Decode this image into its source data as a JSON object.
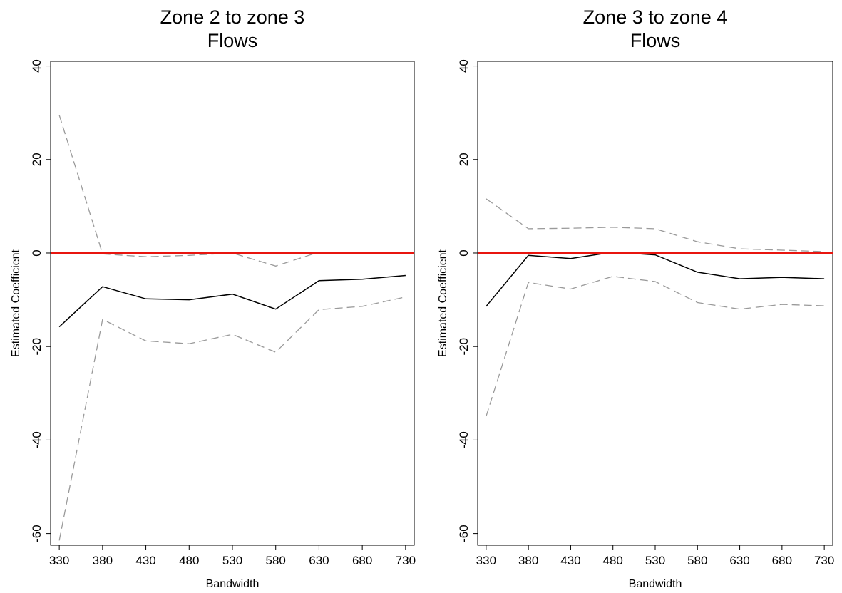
{
  "chart_data": [
    {
      "type": "line",
      "title": [
        "Zone 2 to zone 3",
        "Flows"
      ],
      "xlabel": "Bandwidth",
      "ylabel": "Estimated Coefficient",
      "x": [
        330,
        380,
        430,
        480,
        530,
        580,
        630,
        680,
        730
      ],
      "xticks": [
        "330",
        "380",
        "430",
        "480",
        "530",
        "580",
        "630",
        "680",
        "730"
      ],
      "yticks": [
        -60,
        -40,
        -20,
        0,
        20,
        40
      ],
      "xlim": [
        320,
        740
      ],
      "ylim": [
        -62.5,
        41
      ],
      "grid": false,
      "reference_line": {
        "y": 0,
        "color": "#e8150f"
      },
      "series": [
        {
          "role": "upper",
          "style": "dashed",
          "color": "#9a9a9a",
          "values": [
            29.5,
            -0.2,
            -0.8,
            -0.5,
            0.0,
            -2.8,
            0.2,
            0.2,
            -0.1
          ]
        },
        {
          "role": "estimate",
          "style": "solid",
          "color": "#000000",
          "values": [
            -15.8,
            -7.2,
            -9.8,
            -10.0,
            -8.8,
            -12.0,
            -5.9,
            -5.6,
            -4.8
          ]
        },
        {
          "role": "lower",
          "style": "dashed",
          "color": "#9a9a9a",
          "values": [
            -61.5,
            -14.2,
            -18.8,
            -19.4,
            -17.4,
            -21.2,
            -12.1,
            -11.4,
            -9.4
          ]
        }
      ]
    },
    {
      "type": "line",
      "title": [
        "Zone 3 to zone 4",
        "Flows"
      ],
      "xlabel": "Bandwidth",
      "ylabel": "Estimated Coefficient",
      "x": [
        330,
        380,
        430,
        480,
        530,
        580,
        630,
        680,
        730
      ],
      "xticks": [
        "330",
        "380",
        "430",
        "480",
        "530",
        "580",
        "630",
        "680",
        "730"
      ],
      "yticks": [
        -60,
        -40,
        -20,
        0,
        20,
        40
      ],
      "xlim": [
        320,
        740
      ],
      "ylim": [
        -62.5,
        41
      ],
      "grid": false,
      "reference_line": {
        "y": 0,
        "color": "#e8150f"
      },
      "series": [
        {
          "role": "upper",
          "style": "dashed",
          "color": "#9a9a9a",
          "values": [
            11.6,
            5.2,
            5.3,
            5.5,
            5.2,
            2.4,
            0.9,
            0.6,
            0.3
          ]
        },
        {
          "role": "estimate",
          "style": "solid",
          "color": "#000000",
          "values": [
            -11.4,
            -0.5,
            -1.2,
            0.2,
            -0.4,
            -4.1,
            -5.5,
            -5.2,
            -5.5
          ]
        },
        {
          "role": "lower",
          "style": "dashed",
          "color": "#9a9a9a",
          "values": [
            -34.9,
            -6.3,
            -7.7,
            -5.0,
            -6.1,
            -10.6,
            -12.0,
            -11.0,
            -11.3
          ]
        }
      ]
    }
  ]
}
